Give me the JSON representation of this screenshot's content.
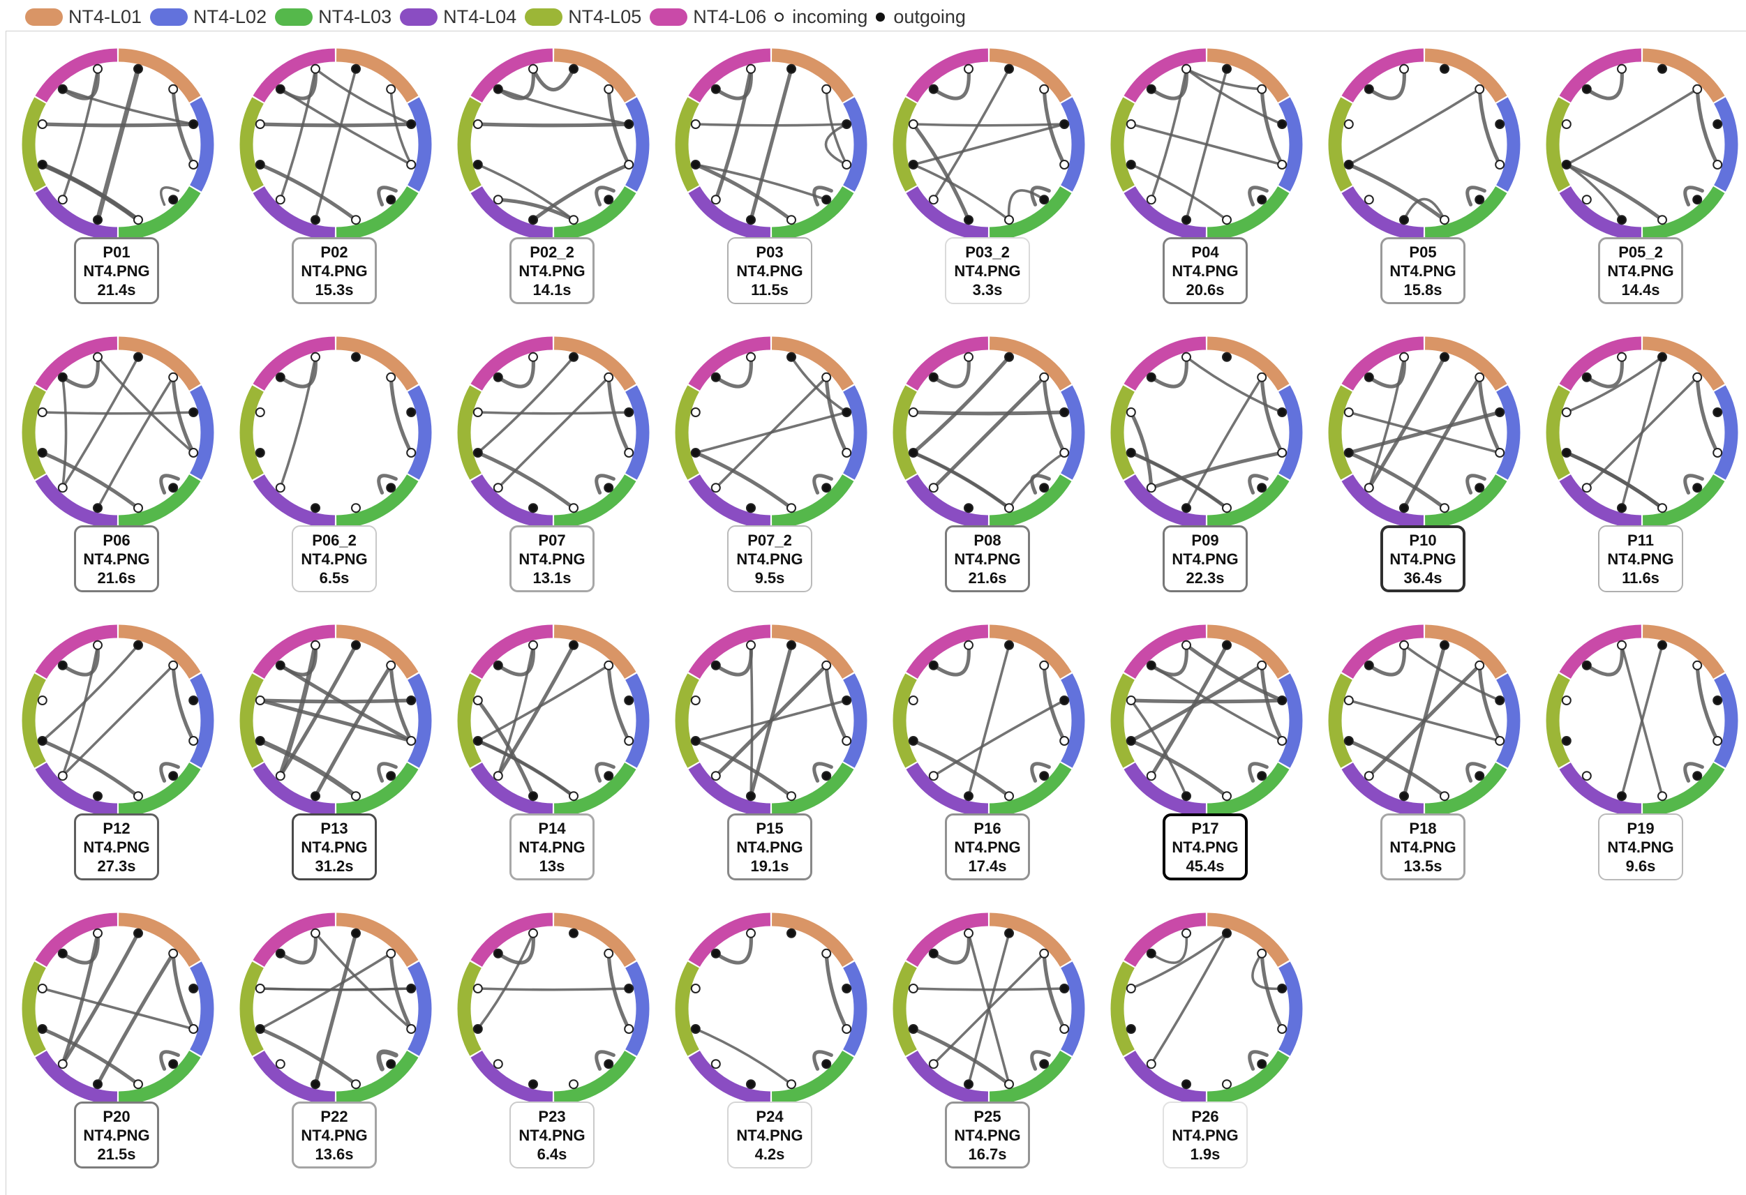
{
  "legend": {
    "segments": [
      {
        "label": "NT4-L01",
        "color": "#d99566"
      },
      {
        "label": "NT4-L02",
        "color": "#6272dc"
      },
      {
        "label": "NT4-L03",
        "color": "#55b84b"
      },
      {
        "label": "NT4-L04",
        "color": "#8a4dc2"
      },
      {
        "label": "NT4-L05",
        "color": "#9cb637"
      },
      {
        "label": "NT4-L06",
        "color": "#c94aa8"
      }
    ],
    "incoming_label": "incoming",
    "outgoing_label": "outgoing"
  },
  "participants": [
    {
      "id": "P01",
      "file": "NT4.PNG",
      "time": "21.4s",
      "time_value": 21.4,
      "links": [
        [
          1,
          3,
          2
        ],
        [
          0,
          6,
          3
        ],
        [
          2,
          9,
          2
        ],
        [
          2,
          10,
          1
        ],
        [
          4,
          4,
          1
        ],
        [
          7,
          11,
          1
        ],
        [
          5,
          8,
          2
        ],
        [
          8,
          5,
          3
        ],
        [
          10,
          11,
          2
        ]
      ]
    },
    {
      "id": "P02",
      "file": "NT4.PNG",
      "time": "15.3s",
      "time_value": 15.3,
      "links": [
        [
          1,
          3,
          1
        ],
        [
          0,
          6,
          1
        ],
        [
          2,
          9,
          2
        ],
        [
          4,
          4,
          2
        ],
        [
          5,
          8,
          2
        ],
        [
          7,
          11,
          1
        ],
        [
          10,
          11,
          2
        ],
        [
          3,
          10,
          1
        ],
        [
          11,
          2,
          1
        ]
      ]
    },
    {
      "id": "P02_2",
      "file": "NT4.PNG",
      "time": "14.1s",
      "time_value": 14.1,
      "links": [
        [
          0,
          11,
          2
        ],
        [
          1,
          3,
          2
        ],
        [
          2,
          9,
          2
        ],
        [
          4,
          4,
          2
        ],
        [
          5,
          7,
          2
        ],
        [
          10,
          11,
          2
        ],
        [
          6,
          3,
          2
        ],
        [
          2,
          10,
          1
        ],
        [
          8,
          5,
          1
        ]
      ]
    },
    {
      "id": "P03",
      "file": "NT4.PNG",
      "time": "11.5s",
      "time_value": 11.5,
      "links": [
        [
          0,
          6,
          2
        ],
        [
          1,
          3,
          1
        ],
        [
          4,
          4,
          2
        ],
        [
          5,
          8,
          2
        ],
        [
          10,
          11,
          2
        ],
        [
          11,
          7,
          2
        ],
        [
          3,
          2,
          1
        ],
        [
          2,
          9,
          1
        ],
        [
          8,
          4,
          1
        ]
      ]
    },
    {
      "id": "P03_2",
      "file": "NT4.PNG",
      "time": "3.3s",
      "time_value": 3.3,
      "links": [
        [
          0,
          7,
          1
        ],
        [
          1,
          3,
          2
        ],
        [
          4,
          4,
          2
        ],
        [
          5,
          8,
          1
        ],
        [
          10,
          11,
          2
        ],
        [
          9,
          6,
          2
        ],
        [
          4,
          5,
          1
        ],
        [
          2,
          8,
          1
        ],
        [
          2,
          9,
          1
        ]
      ]
    },
    {
      "id": "P04",
      "file": "NT4.PNG",
      "time": "20.6s",
      "time_value": 20.6,
      "links": [
        [
          1,
          3,
          2
        ],
        [
          0,
          6,
          1
        ],
        [
          4,
          4,
          2
        ],
        [
          5,
          8,
          1
        ],
        [
          10,
          11,
          2
        ],
        [
          2,
          11,
          1
        ],
        [
          11,
          1,
          1
        ],
        [
          7,
          11,
          1
        ],
        [
          3,
          9,
          1
        ]
      ]
    },
    {
      "id": "P05",
      "file": "NT4.PNG",
      "time": "15.8s",
      "time_value": 15.8,
      "links": [
        [
          1,
          3,
          2
        ],
        [
          4,
          4,
          2
        ],
        [
          5,
          8,
          2
        ],
        [
          10,
          11,
          2
        ],
        [
          1,
          8,
          1
        ],
        [
          6,
          5,
          1
        ]
      ]
    },
    {
      "id": "P05_2",
      "file": "NT4.PNG",
      "time": "14.4s",
      "time_value": 14.4,
      "links": [
        [
          1,
          3,
          2
        ],
        [
          4,
          4,
          2
        ],
        [
          5,
          8,
          2
        ],
        [
          10,
          11,
          2
        ],
        [
          1,
          8,
          1
        ],
        [
          6,
          8,
          1
        ]
      ]
    },
    {
      "id": "P06",
      "file": "NT4.PNG",
      "time": "21.6s",
      "time_value": 21.6,
      "links": [
        [
          1,
          3,
          2
        ],
        [
          4,
          4,
          2
        ],
        [
          5,
          8,
          2
        ],
        [
          10,
          11,
          2
        ],
        [
          0,
          7,
          1
        ],
        [
          1,
          6,
          1
        ],
        [
          2,
          9,
          1
        ],
        [
          3,
          11,
          1
        ],
        [
          7,
          10,
          1
        ]
      ]
    },
    {
      "id": "P06_2",
      "file": "NT4.PNG",
      "time": "6.5s",
      "time_value": 6.5,
      "links": [
        [
          1,
          3,
          2
        ],
        [
          4,
          4,
          2
        ],
        [
          10,
          11,
          2
        ],
        [
          11,
          7,
          1
        ]
      ]
    },
    {
      "id": "P07",
      "file": "NT4.PNG",
      "time": "13.1s",
      "time_value": 13.1,
      "links": [
        [
          1,
          3,
          2
        ],
        [
          4,
          4,
          2
        ],
        [
          5,
          8,
          2
        ],
        [
          10,
          11,
          2
        ],
        [
          0,
          8,
          1
        ],
        [
          1,
          7,
          1
        ],
        [
          2,
          9,
          1
        ]
      ]
    },
    {
      "id": "P07_2",
      "file": "NT4.PNG",
      "time": "9.5s",
      "time_value": 9.5,
      "links": [
        [
          1,
          3,
          2
        ],
        [
          4,
          4,
          2
        ],
        [
          5,
          8,
          2
        ],
        [
          10,
          11,
          2
        ],
        [
          0,
          2,
          1
        ],
        [
          1,
          7,
          1
        ],
        [
          2,
          8,
          1
        ]
      ]
    },
    {
      "id": "P08",
      "file": "NT4.PNG",
      "time": "21.6s",
      "time_value": 21.6,
      "links": [
        [
          1,
          3,
          2
        ],
        [
          4,
          4,
          2
        ],
        [
          5,
          8,
          2
        ],
        [
          10,
          11,
          2
        ],
        [
          0,
          8,
          2
        ],
        [
          1,
          7,
          2
        ],
        [
          2,
          9,
          2
        ],
        [
          3,
          5,
          1
        ],
        [
          8,
          5,
          1
        ]
      ]
    },
    {
      "id": "P09",
      "file": "NT4.PNG",
      "time": "22.3s",
      "time_value": 22.3,
      "links": [
        [
          1,
          3,
          2
        ],
        [
          4,
          4,
          2
        ],
        [
          5,
          8,
          2
        ],
        [
          10,
          11,
          2
        ],
        [
          11,
          2,
          1
        ],
        [
          1,
          6,
          1
        ],
        [
          7,
          9,
          2
        ],
        [
          8,
          5,
          1
        ],
        [
          3,
          7,
          2
        ]
      ]
    },
    {
      "id": "P10",
      "file": "NT4.PNG",
      "time": "36.4s",
      "time_value": 36.4,
      "links": [
        [
          1,
          3,
          2
        ],
        [
          4,
          4,
          2
        ],
        [
          5,
          8,
          2
        ],
        [
          10,
          11,
          2
        ],
        [
          0,
          7,
          2
        ],
        [
          1,
          6,
          2
        ],
        [
          2,
          8,
          2
        ],
        [
          11,
          7,
          1
        ],
        [
          9,
          3,
          1
        ]
      ]
    },
    {
      "id": "P11",
      "file": "NT4.PNG",
      "time": "11.6s",
      "time_value": 11.6,
      "links": [
        [
          1,
          3,
          2
        ],
        [
          4,
          4,
          2
        ],
        [
          5,
          8,
          2
        ],
        [
          10,
          11,
          2
        ],
        [
          0,
          6,
          1
        ],
        [
          0,
          9,
          1
        ],
        [
          1,
          7,
          1
        ],
        [
          5,
          8,
          2
        ]
      ]
    },
    {
      "id": "P12",
      "file": "NT4.PNG",
      "time": "27.3s",
      "time_value": 27.3,
      "links": [
        [
          1,
          3,
          2
        ],
        [
          4,
          4,
          2
        ],
        [
          5,
          8,
          2
        ],
        [
          10,
          11,
          2
        ],
        [
          0,
          8,
          1
        ],
        [
          1,
          7,
          1
        ],
        [
          11,
          7,
          1
        ]
      ]
    },
    {
      "id": "P13",
      "file": "NT4.PNG",
      "time": "31.2s",
      "time_value": 31.2,
      "links": [
        [
          1,
          3,
          2
        ],
        [
          4,
          4,
          2
        ],
        [
          5,
          8,
          3
        ],
        [
          10,
          11,
          2
        ],
        [
          0,
          7,
          2
        ],
        [
          1,
          6,
          2
        ],
        [
          2,
          9,
          2
        ],
        [
          3,
          10,
          2
        ],
        [
          9,
          3,
          2
        ],
        [
          11,
          7,
          3
        ]
      ]
    },
    {
      "id": "P14",
      "file": "NT4.PNG",
      "time": "13s",
      "time_value": 13,
      "links": [
        [
          1,
          3,
          2
        ],
        [
          4,
          4,
          2
        ],
        [
          5,
          8,
          2
        ],
        [
          10,
          11,
          2
        ],
        [
          0,
          7,
          2
        ],
        [
          1,
          8,
          1
        ],
        [
          9,
          6,
          2
        ],
        [
          11,
          7,
          1
        ],
        [
          8,
          5,
          1
        ]
      ]
    },
    {
      "id": "P15",
      "file": "NT4.PNG",
      "time": "19.1s",
      "time_value": 19.1,
      "links": [
        [
          1,
          3,
          2
        ],
        [
          4,
          4,
          2
        ],
        [
          5,
          8,
          2
        ],
        [
          10,
          11,
          2
        ],
        [
          0,
          6,
          2
        ],
        [
          1,
          7,
          2
        ],
        [
          2,
          8,
          1
        ],
        [
          11,
          6,
          1
        ]
      ]
    },
    {
      "id": "P16",
      "file": "NT4.PNG",
      "time": "17.4s",
      "time_value": 17.4,
      "links": [
        [
          1,
          3,
          2
        ],
        [
          4,
          4,
          2
        ],
        [
          5,
          8,
          2
        ],
        [
          10,
          11,
          2
        ],
        [
          0,
          6,
          1
        ],
        [
          2,
          7,
          1
        ]
      ]
    },
    {
      "id": "P17",
      "file": "NT4.PNG",
      "time": "45.4s",
      "time_value": 45.4,
      "links": [
        [
          1,
          3,
          2
        ],
        [
          4,
          4,
          2
        ],
        [
          5,
          8,
          2
        ],
        [
          10,
          11,
          2
        ],
        [
          0,
          7,
          2
        ],
        [
          1,
          8,
          2
        ],
        [
          2,
          9,
          2
        ],
        [
          3,
          10,
          1
        ],
        [
          11,
          2,
          2
        ],
        [
          9,
          6,
          1
        ]
      ]
    },
    {
      "id": "P18",
      "file": "NT4.PNG",
      "time": "13.5s",
      "time_value": 13.5,
      "links": [
        [
          1,
          3,
          2
        ],
        [
          4,
          4,
          2
        ],
        [
          5,
          8,
          2
        ],
        [
          10,
          11,
          2
        ],
        [
          0,
          6,
          2
        ],
        [
          1,
          7,
          2
        ],
        [
          3,
          9,
          1
        ],
        [
          11,
          2,
          1
        ]
      ]
    },
    {
      "id": "P19",
      "file": "NT4.PNG",
      "time": "9.6s",
      "time_value": 9.6,
      "links": [
        [
          1,
          3,
          2
        ],
        [
          4,
          4,
          2
        ],
        [
          10,
          11,
          2
        ],
        [
          0,
          6,
          1
        ],
        [
          11,
          5,
          1
        ]
      ]
    },
    {
      "id": "P20",
      "file": "NT4.PNG",
      "time": "21.5s",
      "time_value": 21.5,
      "links": [
        [
          1,
          3,
          2
        ],
        [
          4,
          4,
          2
        ],
        [
          5,
          8,
          2
        ],
        [
          10,
          11,
          2
        ],
        [
          0,
          7,
          2
        ],
        [
          1,
          6,
          2
        ],
        [
          9,
          3,
          1
        ],
        [
          11,
          7,
          2
        ]
      ]
    },
    {
      "id": "P22",
      "file": "NT4.PNG",
      "time": "13.6s",
      "time_value": 13.6,
      "links": [
        [
          1,
          3,
          2
        ],
        [
          4,
          4,
          3
        ],
        [
          5,
          8,
          2
        ],
        [
          10,
          11,
          2
        ],
        [
          0,
          6,
          2
        ],
        [
          1,
          8,
          1
        ],
        [
          2,
          9,
          1
        ],
        [
          11,
          3,
          1
        ],
        [
          9,
          2,
          1
        ]
      ]
    },
    {
      "id": "P23",
      "file": "NT4.PNG",
      "time": "6.4s",
      "time_value": 6.4,
      "links": [
        [
          1,
          3,
          2
        ],
        [
          4,
          4,
          2
        ],
        [
          10,
          11,
          2
        ],
        [
          11,
          8,
          1
        ],
        [
          2,
          9,
          1
        ]
      ]
    },
    {
      "id": "P24",
      "file": "NT4.PNG",
      "time": "4.2s",
      "time_value": 4.2,
      "links": [
        [
          1,
          3,
          2
        ],
        [
          4,
          4,
          2
        ],
        [
          10,
          11,
          2
        ],
        [
          5,
          8,
          1
        ]
      ]
    },
    {
      "id": "P25",
      "file": "NT4.PNG",
      "time": "16.7s",
      "time_value": 16.7,
      "links": [
        [
          1,
          3,
          2
        ],
        [
          4,
          4,
          2
        ],
        [
          5,
          8,
          2
        ],
        [
          10,
          11,
          2
        ],
        [
          0,
          6,
          1
        ],
        [
          11,
          5,
          1
        ],
        [
          1,
          7,
          1
        ],
        [
          2,
          9,
          1
        ]
      ]
    },
    {
      "id": "P26",
      "file": "NT4.PNG",
      "time": "1.9s",
      "time_value": 1.9,
      "links": [
        [
          1,
          3,
          2
        ],
        [
          4,
          4,
          2
        ],
        [
          10,
          11,
          1
        ],
        [
          0,
          9,
          1
        ],
        [
          0,
          7,
          1
        ],
        [
          1,
          2,
          1
        ]
      ]
    }
  ]
}
